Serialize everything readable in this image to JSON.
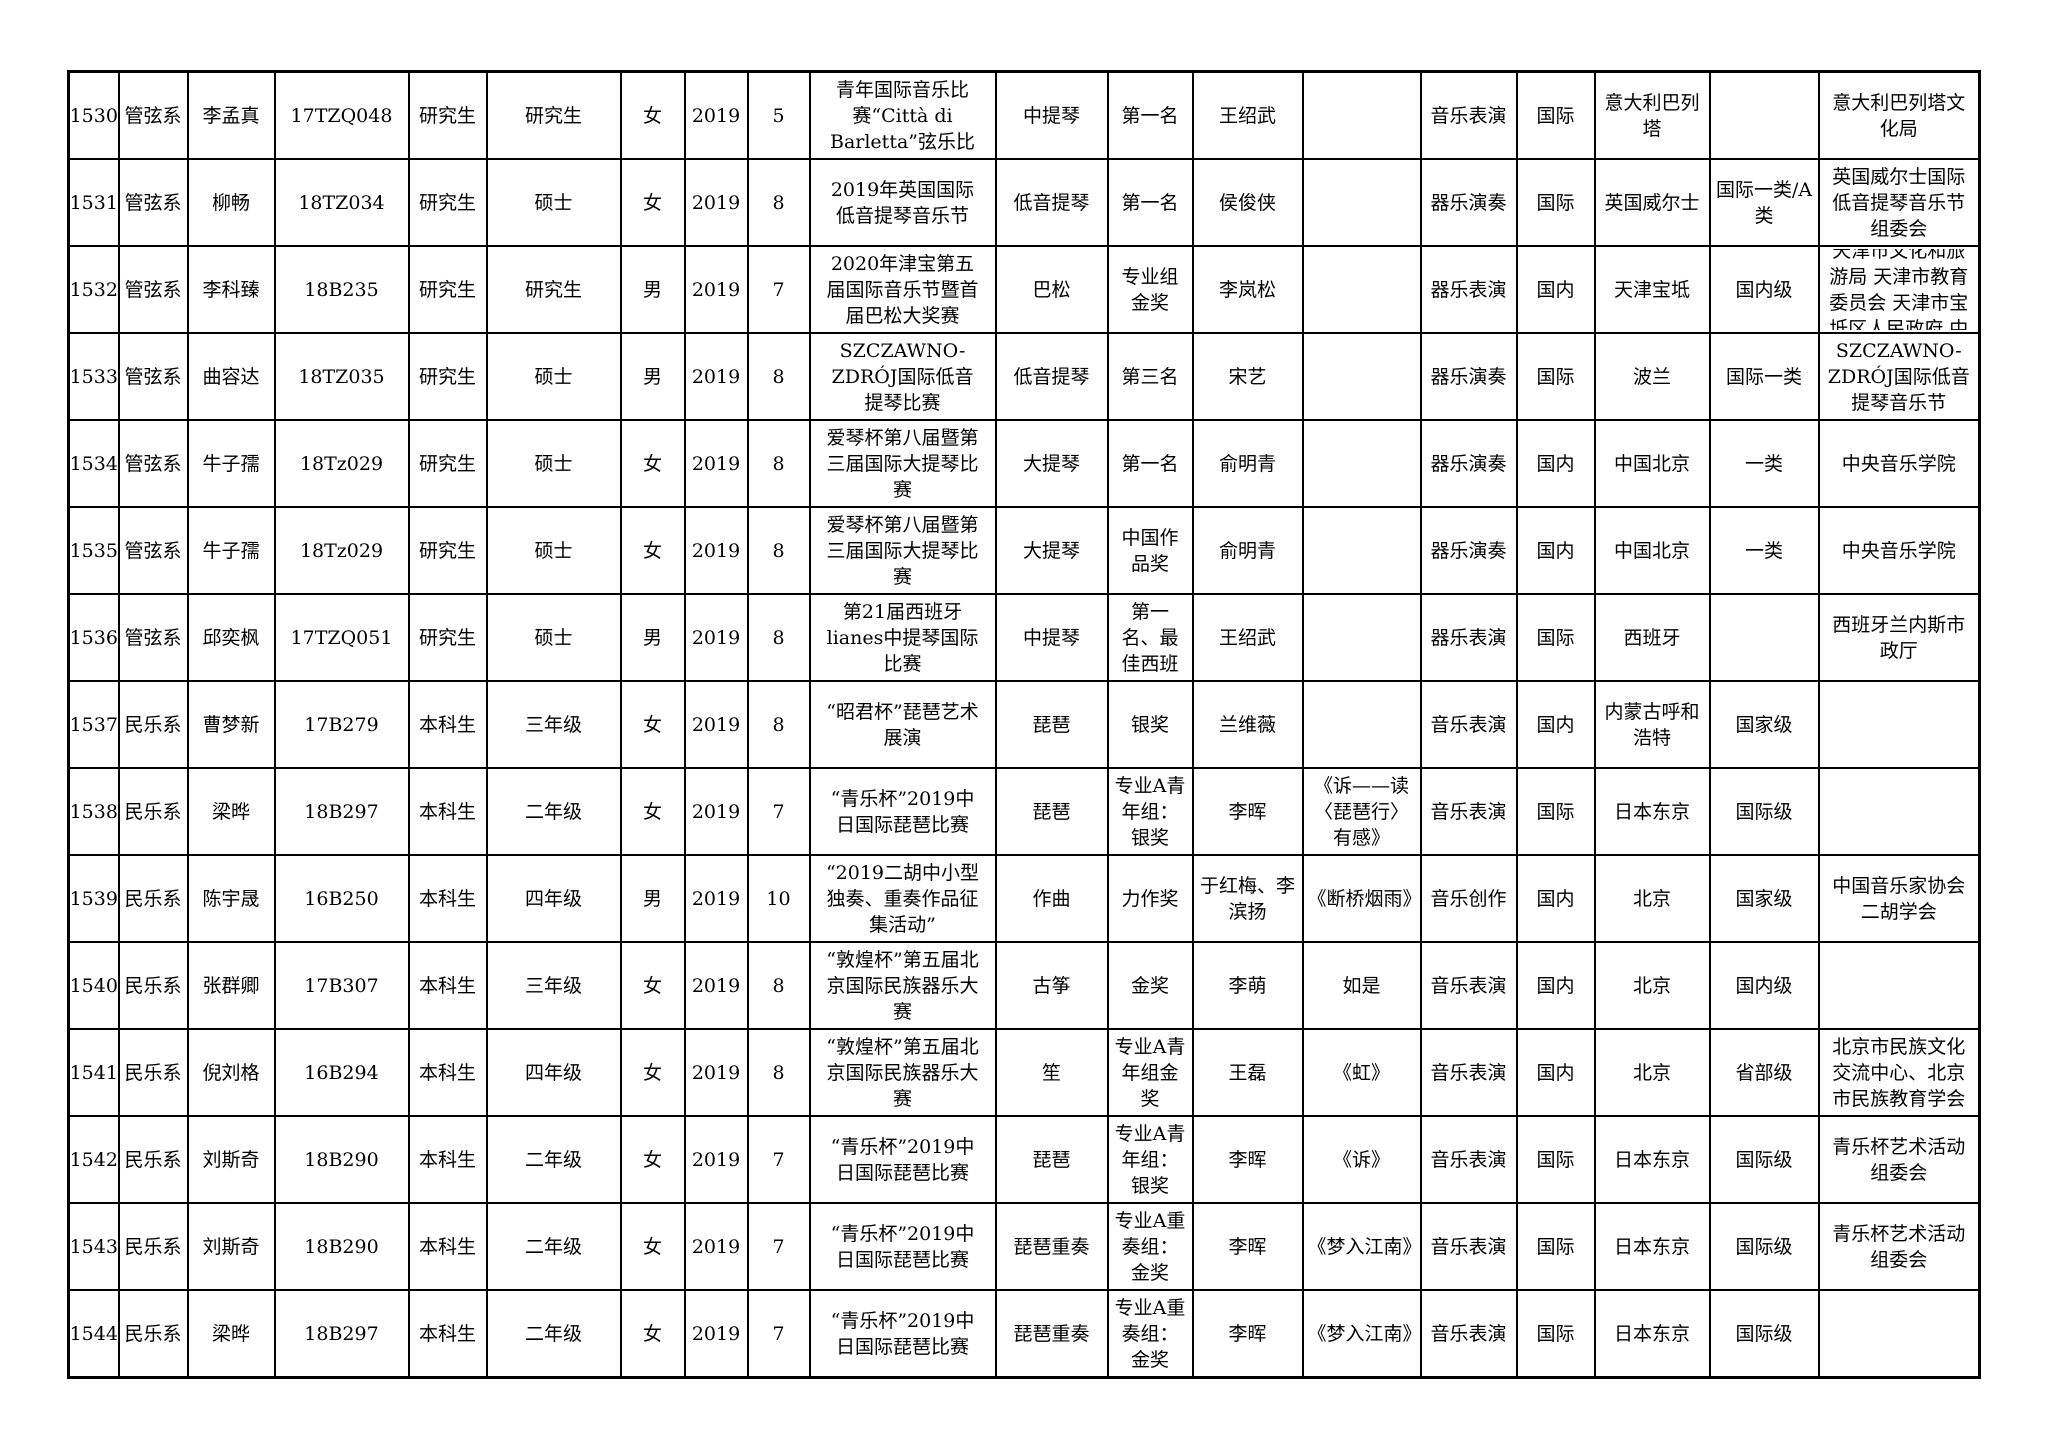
{
  "document": {
    "description_note": "",
    "colors": {
      "background": "#ffffff",
      "border": "#000000",
      "text": "#000000"
    }
  },
  "table": {
    "column_keys": [
      "seq",
      "department",
      "name",
      "student_id",
      "student_type",
      "grade",
      "gender",
      "year",
      "month",
      "competition",
      "instrument",
      "award",
      "teacher",
      "work",
      "category",
      "scope",
      "location",
      "level",
      "organizer"
    ],
    "rows": [
      [
        "1530",
        "管弦系",
        "李孟真",
        "17TZQ048",
        "研究生",
        "研究生",
        "女",
        "2019",
        "5",
        "第二十九届意大利青年国际音乐比赛“Città di Barletta”弦乐比赛",
        "中提琴",
        "第一名",
        "王绍武",
        "",
        "音乐表演",
        "国际",
        "意大利巴列塔",
        "",
        "意大利巴列塔文化局"
      ],
      [
        "1531",
        "管弦系",
        "柳畅",
        "18TZ034",
        "研究生",
        "硕士",
        "女",
        "2019",
        "8",
        "2019年英国国际低音提琴音乐节",
        "低音提琴",
        "第一名",
        "侯俊侠",
        "",
        "器乐演奏",
        "国际",
        "英国威尔士",
        "国际一类/A类",
        "英国威尔士国际低音提琴音乐节组委会"
      ],
      [
        "1532",
        "管弦系",
        "李科臻",
        "18B235",
        "研究生",
        "研究生",
        "男",
        "2019",
        "7",
        "2020年津宝第五届国际音乐节暨首届巴松大奖赛",
        "巴松",
        "专业组金奖",
        "李岚松",
        "",
        "器乐表演",
        "国内",
        "天津宝坻",
        "国内级",
        "天津市文化和旅游局 天津市教育委员会 天津市宝坻区人民政府 中"
      ],
      [
        "1533",
        "管弦系",
        "曲容达",
        "18TZ035",
        "研究生",
        "硕士",
        "男",
        "2019",
        "8",
        "SZCZAWNO-ZDRÓJ国际低音提琴比赛",
        "低音提琴",
        "第三名",
        "宋艺",
        "",
        "器乐演奏",
        "国际",
        "波兰",
        "国际一类",
        "SZCZAWNO-ZDRÓJ国际低音提琴音乐节"
      ],
      [
        "1534",
        "管弦系",
        "牛子孺",
        "18Tz029",
        "研究生",
        "硕士",
        "女",
        "2019",
        "8",
        "爱琴杯第八届暨第三届国际大提琴比赛",
        "大提琴",
        "第一名",
        "俞明青",
        "",
        "器乐演奏",
        "国内",
        "中国北京",
        "一类",
        "中央音乐学院"
      ],
      [
        "1535",
        "管弦系",
        "牛子孺",
        "18Tz029",
        "研究生",
        "硕士",
        "女",
        "2019",
        "8",
        "爱琴杯第八届暨第三届国际大提琴比赛",
        "大提琴",
        "中国作品奖",
        "俞明青",
        "",
        "器乐演奏",
        "国内",
        "中国北京",
        "一类",
        "中央音乐学院"
      ],
      [
        "1536",
        "管弦系",
        "邱奕枫",
        "17TZQ051",
        "研究生",
        "硕士",
        "男",
        "2019",
        "8",
        "第21届西班牙lianes中提琴国际比赛",
        "中提琴",
        "青年组第一名、最佳西班牙",
        "王绍武",
        "",
        "器乐表演",
        "国际",
        "西班牙",
        "",
        "西班牙兰内斯市政厅"
      ],
      [
        "1537",
        "民乐系",
        "曹梦新",
        "17B279",
        "本科生",
        "三年级",
        "女",
        "2019",
        "8",
        "“昭君杯”琵琶艺术展演",
        "琵琶",
        "银奖",
        "兰维薇",
        "",
        "音乐表演",
        "国内",
        "内蒙古呼和浩特",
        "国家级",
        ""
      ],
      [
        "1538",
        "民乐系",
        "梁晔",
        "18B297",
        "本科生",
        "二年级",
        "女",
        "2019",
        "7",
        "“青乐杯”2019中日国际琵琶比赛",
        "琵琶",
        "专业A青年组：银奖",
        "李晖",
        "《诉——读〈琵琶行〉有感》",
        "音乐表演",
        "国际",
        "日本东京",
        "国际级",
        ""
      ],
      [
        "1539",
        "民乐系",
        "陈宇晟",
        "16B250",
        "本科生",
        "四年级",
        "男",
        "2019",
        "10",
        "“2019二胡中小型独奏、重奏作品征集活动”",
        "作曲",
        "力作奖",
        "于红梅、李滨扬",
        "《断桥烟雨》",
        "音乐创作",
        "国内",
        "北京",
        "国家级",
        "中国音乐家协会二胡学会"
      ],
      [
        "1540",
        "民乐系",
        "张群卿",
        "17B307",
        "本科生",
        "三年级",
        "女",
        "2019",
        "8",
        "“敦煌杯”第五届北京国际民族器乐大赛",
        "古筝",
        "金奖",
        "李萌",
        "如是",
        "音乐表演",
        "国内",
        "北京",
        "国内级",
        ""
      ],
      [
        "1541",
        "民乐系",
        "倪刘格",
        "16B294",
        "本科生",
        "四年级",
        "女",
        "2019",
        "8",
        "“敦煌杯”第五届北京国际民族器乐大赛",
        "笙",
        "专业A青年组金奖",
        "王磊",
        "《虹》",
        "音乐表演",
        "国内",
        "北京",
        "省部级",
        "北京市民族文化交流中心、北京市民族教育学会"
      ],
      [
        "1542",
        "民乐系",
        "刘斯奇",
        "18B290",
        "本科生",
        "二年级",
        "女",
        "2019",
        "7",
        "“青乐杯”2019中日国际琵琶比赛",
        "琵琶",
        "专业A青年组：银奖",
        "李晖",
        "《诉》",
        "音乐表演",
        "国际",
        "日本东京",
        "国际级",
        "青乐杯艺术活动组委会"
      ],
      [
        "1543",
        "民乐系",
        "刘斯奇",
        "18B290",
        "本科生",
        "二年级",
        "女",
        "2019",
        "7",
        "“青乐杯”2019中日国际琵琶比赛",
        "琵琶重奏",
        "专业A重奏组：金奖",
        "李晖",
        "《梦入江南》",
        "音乐表演",
        "国际",
        "日本东京",
        "国际级",
        "青乐杯艺术活动组委会"
      ],
      [
        "1544",
        "民乐系",
        "梁晔",
        "18B297",
        "本科生",
        "二年级",
        "女",
        "2019",
        "7",
        "“青乐杯”2019中日国际琵琶比赛",
        "琵琶重奏",
        "专业A重奏组：金奖",
        "李晖",
        "《梦入江南》",
        "音乐表演",
        "国际",
        "日本东京",
        "国际级",
        ""
      ]
    ]
  }
}
